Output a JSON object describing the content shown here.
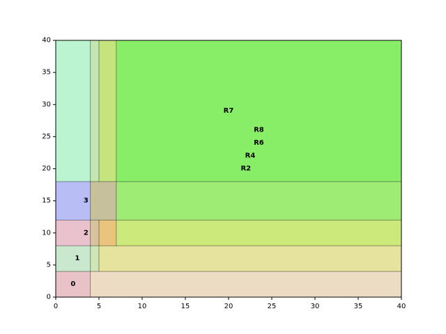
{
  "chart_data": {
    "type": "rectangles",
    "title": "",
    "xlabel": "",
    "ylabel": "",
    "xlim": [
      0,
      40
    ],
    "ylim": [
      0,
      40
    ],
    "xticks": [
      "0",
      "5",
      "10",
      "15",
      "20",
      "25",
      "30",
      "35",
      "40"
    ],
    "yticks": [
      "0",
      "5",
      "10",
      "15",
      "20",
      "25",
      "30",
      "35",
      "40"
    ],
    "grid": false,
    "regions": [
      {
        "label": "",
        "x0": 4,
        "y0": 0,
        "x1": 40,
        "y1": 4,
        "color": "#ecdcc3"
      },
      {
        "label": "",
        "x0": 5,
        "y0": 4,
        "x1": 40,
        "y1": 8,
        "color": "#e5e39d"
      },
      {
        "label": "",
        "x0": 7,
        "y0": 8,
        "x1": 40,
        "y1": 12,
        "color": "#cce97b"
      },
      {
        "label": "",
        "x0": 7,
        "y0": 12,
        "x1": 40,
        "y1": 18,
        "color": "#9fec75"
      },
      {
        "label": "",
        "x0": 7,
        "y0": 18,
        "x1": 40,
        "y1": 40,
        "color": "#88ee68"
      },
      {
        "label": "",
        "x0": 0,
        "y0": 18,
        "x1": 4,
        "y1": 40,
        "color": "#bbf4d0"
      },
      {
        "label": "",
        "x0": 4,
        "y0": 18,
        "x1": 5,
        "y1": 40,
        "color": "#c3e7b2"
      },
      {
        "label": "",
        "x0": 5,
        "y0": 18,
        "x1": 7,
        "y1": 40,
        "color": "#c6e47d"
      },
      {
        "label": "",
        "x0": 4,
        "y0": 12,
        "x1": 7,
        "y1": 18,
        "color": "#c7c09d"
      },
      {
        "label": "",
        "x0": 4,
        "y0": 8,
        "x1": 5,
        "y1": 12,
        "color": "#d7c39e"
      },
      {
        "label": "",
        "x0": 5,
        "y0": 8,
        "x1": 7,
        "y1": 12,
        "color": "#eac47d"
      },
      {
        "label": "",
        "x0": 4,
        "y0": 4,
        "x1": 5,
        "y1": 8,
        "color": "#cee5b6"
      },
      {
        "label": "",
        "x0": 0,
        "y0": 0,
        "x1": 4,
        "y1": 4,
        "color": "#e8c2c6"
      },
      {
        "label": "",
        "x0": 0,
        "y0": 4,
        "x1": 4,
        "y1": 8,
        "color": "#c9e8cd"
      },
      {
        "label": "",
        "x0": 0,
        "y0": 8,
        "x1": 4,
        "y1": 12,
        "color": "#e9c2ce"
      },
      {
        "label": "",
        "x0": 0,
        "y0": 12,
        "x1": 4,
        "y1": 18,
        "color": "#b9bdf6"
      }
    ],
    "labels": [
      {
        "text": "0",
        "x": 2,
        "y": 2
      },
      {
        "text": "1",
        "x": 2.5,
        "y": 6
      },
      {
        "text": "2",
        "x": 3.5,
        "y": 10
      },
      {
        "text": "3",
        "x": 3.5,
        "y": 15
      },
      {
        "text": "R7",
        "x": 20,
        "y": 29
      },
      {
        "text": "R8",
        "x": 23.5,
        "y": 26
      },
      {
        "text": "R6",
        "x": 23.5,
        "y": 24
      },
      {
        "text": "R4",
        "x": 22.5,
        "y": 22
      },
      {
        "text": "R2",
        "x": 22,
        "y": 20
      }
    ]
  }
}
